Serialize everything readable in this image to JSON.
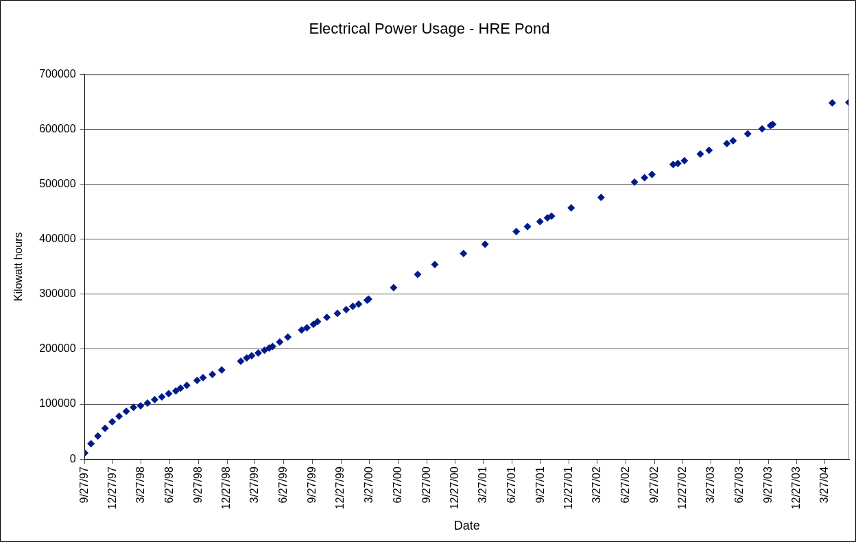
{
  "chart_data": {
    "type": "scatter",
    "title": "Electrical Power Usage - HRE Pond",
    "xlabel": "Date",
    "ylabel": "Kilowatt hours",
    "x": [
      "1997-09-27",
      "1997-10-17",
      "1997-11-08",
      "1997-12-01",
      "1997-12-24",
      "1998-01-15",
      "1998-02-07",
      "1998-03-02",
      "1998-03-25",
      "1998-04-16",
      "1998-05-09",
      "1998-06-01",
      "1998-06-23",
      "1998-07-16",
      "1998-07-31",
      "1998-08-20",
      "1998-09-22",
      "1998-10-11",
      "1998-11-10",
      "1998-12-10",
      "1999-02-09",
      "1999-02-28",
      "1999-03-16",
      "1999-04-06",
      "1999-04-26",
      "1999-05-11",
      "1999-05-22",
      "1999-06-14",
      "1999-07-10",
      "1999-08-23",
      "1999-09-09",
      "1999-09-30",
      "1999-10-13",
      "1999-11-12",
      "1999-12-16",
      "2000-01-13",
      "2000-02-03",
      "2000-02-22",
      "2000-03-20",
      "2000-03-25",
      "2000-06-13",
      "2000-08-29",
      "2000-10-23",
      "2001-01-23",
      "2001-04-02",
      "2001-07-11",
      "2001-08-16",
      "2001-09-25",
      "2001-10-19",
      "2001-11-01",
      "2002-01-03",
      "2002-04-09",
      "2002-07-25",
      "2002-08-26",
      "2002-09-19",
      "2002-11-26",
      "2002-12-11",
      "2003-01-01",
      "2003-02-21",
      "2003-03-21",
      "2003-05-17",
      "2003-06-06",
      "2003-07-23",
      "2003-09-07",
      "2003-10-04",
      "2003-10-11",
      "2004-04-19",
      "2004-06-11"
    ],
    "series": [
      {
        "color": "#001a8c",
        "values": [
          11000,
          28000,
          42000,
          56000,
          68000,
          78000,
          87000,
          94000,
          97000,
          102000,
          108000,
          113000,
          119000,
          124000,
          129000,
          134000,
          143000,
          148000,
          154000,
          162000,
          178000,
          184000,
          188000,
          193000,
          198000,
          202000,
          205000,
          213000,
          222000,
          235000,
          239000,
          245000,
          250000,
          258000,
          265000,
          272000,
          278000,
          282000,
          289000,
          291000,
          312000,
          336000,
          354000,
          374000,
          391000,
          414000,
          423000,
          432000,
          439000,
          442000,
          457000,
          476000,
          504000,
          512000,
          518000,
          536000,
          538000,
          543000,
          555000,
          562000,
          574000,
          579000,
          592000,
          601000,
          607000,
          609000,
          648000,
          649000
        ]
      }
    ],
    "xlim": [
      "1997-09-27",
      "2004-06-12"
    ],
    "xticks": [
      {
        "value": "1997-09-27",
        "label": "9/27/97"
      },
      {
        "value": "1997-12-27",
        "label": "12/27/97"
      },
      {
        "value": "1998-03-27",
        "label": "3/27/98"
      },
      {
        "value": "1998-06-27",
        "label": "6/27/98"
      },
      {
        "value": "1998-09-27",
        "label": "9/27/98"
      },
      {
        "value": "1998-12-27",
        "label": "12/27/98"
      },
      {
        "value": "1999-03-27",
        "label": "3/27/99"
      },
      {
        "value": "1999-06-27",
        "label": "6/27/99"
      },
      {
        "value": "1999-09-27",
        "label": "9/27/99"
      },
      {
        "value": "1999-12-27",
        "label": "12/27/99"
      },
      {
        "value": "2000-03-27",
        "label": "3/27/00"
      },
      {
        "value": "2000-06-27",
        "label": "6/27/00"
      },
      {
        "value": "2000-09-27",
        "label": "9/27/00"
      },
      {
        "value": "2000-12-27",
        "label": "12/27/00"
      },
      {
        "value": "2001-03-27",
        "label": "3/27/01"
      },
      {
        "value": "2001-06-27",
        "label": "6/27/01"
      },
      {
        "value": "2001-09-27",
        "label": "9/27/01"
      },
      {
        "value": "2001-12-27",
        "label": "12/27/01"
      },
      {
        "value": "2002-03-27",
        "label": "3/27/02"
      },
      {
        "value": "2002-06-27",
        "label": "6/27/02"
      },
      {
        "value": "2002-09-27",
        "label": "9/27/02"
      },
      {
        "value": "2002-12-27",
        "label": "12/27/02"
      },
      {
        "value": "2003-03-27",
        "label": "3/27/03"
      },
      {
        "value": "2003-06-27",
        "label": "6/27/03"
      },
      {
        "value": "2003-09-27",
        "label": "9/27/03"
      },
      {
        "value": "2003-12-27",
        "label": "12/27/03"
      },
      {
        "value": "2004-03-27",
        "label": "3/27/04"
      }
    ],
    "ylim": [
      0,
      700000
    ],
    "yticks": [
      0,
      100000,
      200000,
      300000,
      400000,
      500000,
      600000,
      700000
    ],
    "grid": "y",
    "legend": false,
    "marker": "diamond"
  }
}
